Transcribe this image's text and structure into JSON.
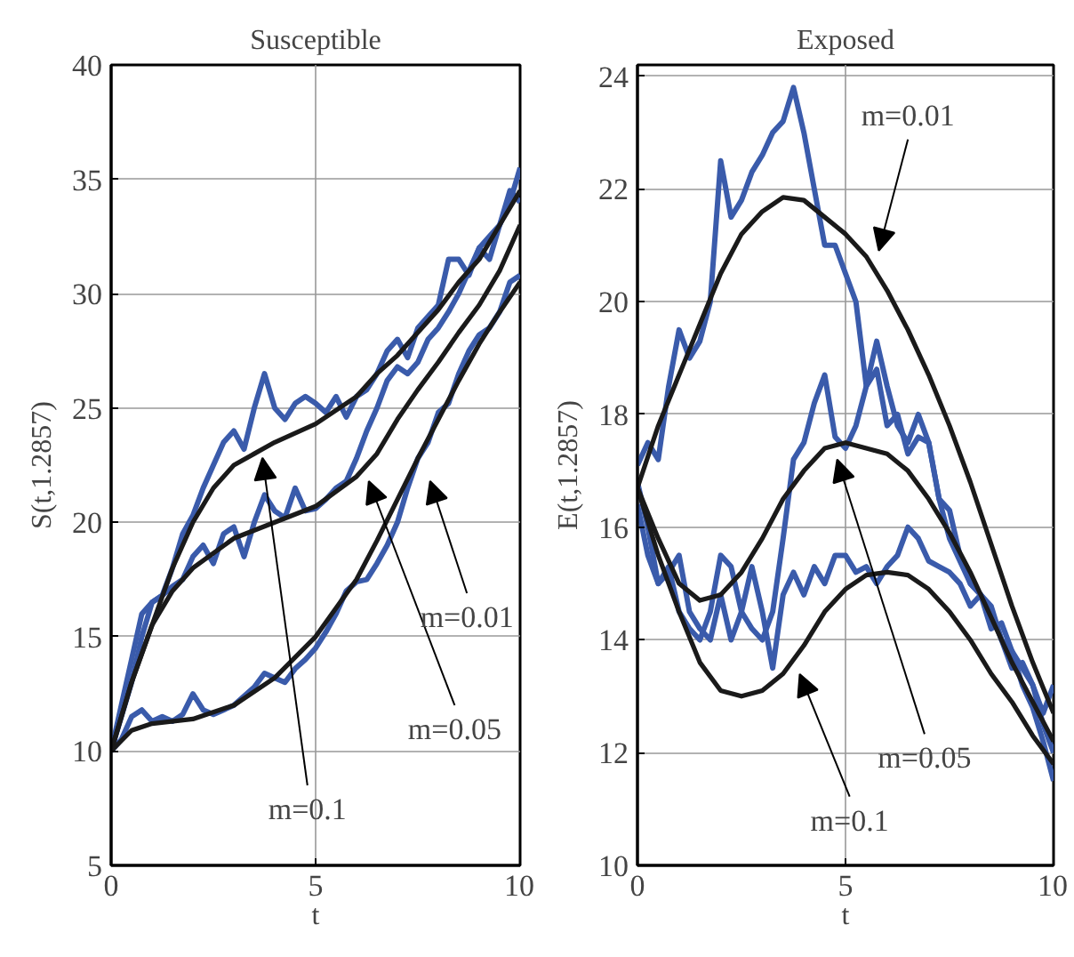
{
  "chart_data": [
    {
      "type": "line",
      "title": "Susceptible",
      "xlabel": "t",
      "ylabel": "S(t,1.2857)",
      "xlim": [
        0,
        10
      ],
      "ylim": [
        5,
        40
      ],
      "xticks": [
        0,
        5,
        10
      ],
      "yticks": [
        5,
        10,
        15,
        20,
        25,
        30,
        35,
        40
      ],
      "grid": true,
      "series": [
        {
          "color": "#3a5bab",
          "x": [
            0,
            0.25,
            0.5,
            0.75,
            1,
            1.25,
            1.5,
            1.75,
            2,
            2.25,
            2.5,
            2.75,
            3,
            3.25,
            3.5,
            3.75,
            4,
            4.25,
            4.5,
            4.75,
            5,
            5.25,
            5.5,
            5.75,
            6,
            6.25,
            6.5,
            6.75,
            7,
            7.25,
            7.5,
            7.75,
            8,
            8.25,
            8.5,
            8.75,
            9,
            9.25,
            9.5,
            9.75,
            10
          ],
          "values": [
            10,
            11.5,
            13,
            15,
            16.5,
            16.8,
            18,
            19.5,
            20.3,
            21.5,
            22.5,
            23.5,
            24,
            23.2,
            25,
            26.5,
            25,
            24.5,
            25.2,
            25.5,
            25.2,
            24.8,
            25.5,
            24.6,
            25.5,
            25.8,
            26.5,
            27.5,
            28,
            27.2,
            28.5,
            29,
            29.5,
            31.5,
            31.5,
            30.8,
            32,
            31.5,
            33,
            34,
            35.5
          ]
        },
        {
          "color": "#3a5bab",
          "x": [
            0,
            0.25,
            0.5,
            0.75,
            1,
            1.25,
            1.5,
            1.75,
            2,
            2.25,
            2.5,
            2.75,
            3,
            3.25,
            3.5,
            3.75,
            4,
            4.25,
            4.5,
            4.75,
            5,
            5.25,
            5.5,
            5.75,
            6,
            6.25,
            6.5,
            6.75,
            7,
            7.25,
            7.5,
            7.75,
            8,
            8.25,
            8.5,
            8.75,
            9,
            9.25,
            9.5,
            9.75,
            10
          ],
          "values": [
            10,
            12,
            14,
            16,
            16.5,
            16.8,
            17.2,
            17.5,
            18.5,
            19,
            18.2,
            19.5,
            19.8,
            18.5,
            20,
            21.2,
            20.5,
            20.2,
            21.5,
            20.5,
            20.6,
            21,
            21.5,
            21.8,
            22.8,
            24,
            25,
            26.2,
            26.8,
            26.5,
            27,
            28,
            28.5,
            29.2,
            30,
            31,
            32,
            32.5,
            33,
            34.5,
            34
          ]
        },
        {
          "color": "#3a5bab",
          "x": [
            0,
            0.25,
            0.5,
            0.75,
            1,
            1.25,
            1.5,
            1.75,
            2,
            2.25,
            2.5,
            2.75,
            3,
            3.25,
            3.5,
            3.75,
            4,
            4.25,
            4.5,
            4.75,
            5,
            5.25,
            5.5,
            5.75,
            6,
            6.25,
            6.5,
            6.75,
            7,
            7.25,
            7.5,
            7.75,
            8,
            8.25,
            8.5,
            8.75,
            9,
            9.25,
            9.5,
            9.75,
            10
          ],
          "values": [
            10,
            10.5,
            11.5,
            11.8,
            11.3,
            11.5,
            11.3,
            11.6,
            12.5,
            11.8,
            11.6,
            11.8,
            12,
            12.4,
            12.8,
            13.4,
            13.2,
            13,
            13.6,
            14,
            14.5,
            15.2,
            16,
            17,
            17.4,
            17.5,
            18.2,
            19,
            20,
            21.5,
            22.8,
            23.5,
            24.8,
            25.2,
            26.5,
            27.5,
            28.2,
            28.5,
            29.2,
            30.5,
            30.8
          ]
        },
        {
          "color": "#1a1a1a",
          "x": [
            0,
            0.5,
            1,
            1.5,
            2,
            2.5,
            3,
            3.5,
            4,
            5,
            6,
            6.5,
            7,
            7.5,
            8,
            8.5,
            9,
            9.5,
            10
          ],
          "values": [
            10,
            13,
            15.5,
            18,
            20,
            21.5,
            22.5,
            23,
            23.5,
            24.3,
            25.5,
            26.5,
            27.3,
            28.3,
            29.3,
            30.5,
            31.5,
            33,
            34.5
          ]
        },
        {
          "color": "#1a1a1a",
          "x": [
            0,
            0.5,
            1,
            1.5,
            2,
            3,
            4,
            5,
            6,
            6.5,
            7,
            7.5,
            8,
            8.5,
            9,
            9.5,
            10
          ],
          "values": [
            10,
            13,
            15.5,
            17,
            18,
            19.3,
            20,
            20.7,
            22,
            23,
            24.5,
            25.8,
            27,
            28.3,
            29.5,
            31,
            33
          ]
        },
        {
          "color": "#1a1a1a",
          "x": [
            0,
            0.5,
            1,
            2,
            3,
            4,
            5,
            6,
            6.5,
            7,
            7.5,
            8,
            8.5,
            9,
            9.5,
            10
          ],
          "values": [
            10,
            10.9,
            11.2,
            11.4,
            12,
            13.2,
            15,
            17.5,
            19.2,
            21,
            22.8,
            24.5,
            26.2,
            27.8,
            29.2,
            30.5
          ]
        }
      ],
      "annotations": [
        "m=0.1",
        "m=0.05",
        "m=0.01"
      ]
    },
    {
      "type": "line",
      "title": "Exposed",
      "xlabel": "t",
      "ylabel": "E(t,1.2857)",
      "xlim": [
        0,
        10
      ],
      "ylim": [
        10,
        24.2
      ],
      "xticks": [
        0,
        5,
        10
      ],
      "yticks": [
        10,
        12,
        14,
        16,
        18,
        20,
        22,
        24
      ],
      "grid": true,
      "series": [
        {
          "color": "#3a5bab",
          "x": [
            0,
            0.25,
            0.5,
            0.75,
            1,
            1.25,
            1.5,
            1.75,
            2,
            2.25,
            2.5,
            2.75,
            3,
            3.25,
            3.5,
            3.75,
            4,
            4.25,
            4.5,
            4.75,
            5,
            5.25,
            5.5,
            5.75,
            6,
            6.25,
            6.5,
            6.75,
            7,
            7.25,
            7.5,
            7.75,
            8,
            8.25,
            8.5,
            8.75,
            9,
            9.25,
            9.5,
            9.75,
            10
          ],
          "values": [
            17.1,
            17.5,
            17.2,
            18.5,
            19.5,
            19,
            19.3,
            20,
            22.5,
            21.5,
            21.8,
            22.3,
            22.6,
            23,
            23.2,
            23.8,
            23,
            22,
            21,
            21,
            20.5,
            20,
            18.5,
            19.3,
            18.5,
            17.8,
            17.5,
            18,
            17.5,
            16.5,
            16.3,
            15.5,
            15,
            14.8,
            14.5,
            14,
            13.5,
            13.6,
            13.2,
            12.7,
            13.2
          ]
        },
        {
          "color": "#3a5bab",
          "x": [
            0,
            0.25,
            0.5,
            0.75,
            1,
            1.25,
            1.5,
            1.75,
            2,
            2.25,
            2.5,
            2.75,
            3,
            3.25,
            3.5,
            3.75,
            4,
            4.25,
            4.5,
            4.75,
            5,
            5.25,
            5.5,
            5.75,
            6,
            6.25,
            6.5,
            6.75,
            7,
            7.25,
            7.5,
            7.75,
            8,
            8.25,
            8.5,
            8.75,
            9,
            9.25,
            9.5,
            9.75,
            10
          ],
          "values": [
            16.8,
            16,
            15,
            15.2,
            15.5,
            14.5,
            14.2,
            14,
            14.8,
            14,
            14.5,
            14.2,
            14,
            14.5,
            15.8,
            17.2,
            17.5,
            18.2,
            18.7,
            17.6,
            17.4,
            17.8,
            18.5,
            18.8,
            17.8,
            18,
            17.3,
            17.6,
            17.5,
            16.5,
            15.8,
            15.4,
            15,
            14.8,
            14.6,
            14,
            13.8,
            13.2,
            12.8,
            12.2,
            11.5
          ]
        },
        {
          "color": "#3a5bab",
          "x": [
            0,
            0.25,
            0.5,
            0.75,
            1,
            1.25,
            1.5,
            1.75,
            2,
            2.25,
            2.5,
            2.75,
            3,
            3.25,
            3.5,
            3.75,
            4,
            4.25,
            4.5,
            4.75,
            5,
            5.25,
            5.5,
            5.75,
            6,
            6.25,
            6.5,
            6.75,
            7,
            7.25,
            7.5,
            7.75,
            8,
            8.25,
            8.5,
            8.75,
            9,
            9.25,
            9.5,
            9.75,
            10
          ],
          "values": [
            16.4,
            15.5,
            15,
            15.3,
            14.5,
            14.2,
            14,
            14.5,
            15.5,
            15.3,
            14.5,
            15.3,
            14.5,
            13.5,
            14.8,
            15.2,
            14.8,
            15.3,
            15,
            15.5,
            15.5,
            15.2,
            15.3,
            15,
            15.3,
            15.5,
            16,
            15.8,
            15.4,
            15.3,
            15.2,
            15,
            14.6,
            14.8,
            14.2,
            14.3,
            13.8,
            13.5,
            13.2,
            12.5,
            12
          ]
        },
        {
          "color": "#1a1a1a",
          "x": [
            0,
            0.5,
            1,
            1.5,
            2,
            2.5,
            3,
            3.5,
            4,
            4.5,
            5,
            5.5,
            6,
            6.5,
            7,
            7.5,
            8,
            8.5,
            9,
            9.5,
            10
          ],
          "values": [
            16.7,
            17.8,
            18.7,
            19.6,
            20.5,
            21.2,
            21.6,
            21.85,
            21.8,
            21.5,
            21.2,
            20.8,
            20.2,
            19.5,
            18.7,
            17.8,
            16.8,
            15.7,
            14.6,
            13.6,
            12.7
          ]
        },
        {
          "color": "#1a1a1a",
          "x": [
            0,
            0.5,
            1,
            1.5,
            2,
            2.5,
            3,
            3.5,
            4,
            4.5,
            5,
            5.5,
            6,
            6.5,
            7,
            7.5,
            8,
            8.5,
            9,
            9.5,
            10
          ],
          "values": [
            16.7,
            15.8,
            15,
            14.7,
            14.8,
            15.2,
            15.8,
            16.5,
            17,
            17.4,
            17.5,
            17.4,
            17.3,
            17,
            16.5,
            15.9,
            15.2,
            14.4,
            13.6,
            12.9,
            12.2
          ]
        },
        {
          "color": "#1a1a1a",
          "x": [
            0,
            0.5,
            1,
            1.5,
            2,
            2.5,
            3,
            3.5,
            4,
            4.5,
            5,
            5.5,
            6,
            6.5,
            7,
            7.5,
            8,
            8.5,
            9,
            9.5,
            10
          ],
          "values": [
            16.7,
            15.5,
            14.5,
            13.6,
            13.1,
            13,
            13.1,
            13.4,
            13.9,
            14.5,
            14.9,
            15.15,
            15.2,
            15.15,
            14.9,
            14.5,
            14,
            13.4,
            12.9,
            12.3,
            11.8
          ]
        }
      ],
      "annotations": [
        "m=0.01",
        "m=0.05",
        "m=0.1"
      ]
    }
  ]
}
